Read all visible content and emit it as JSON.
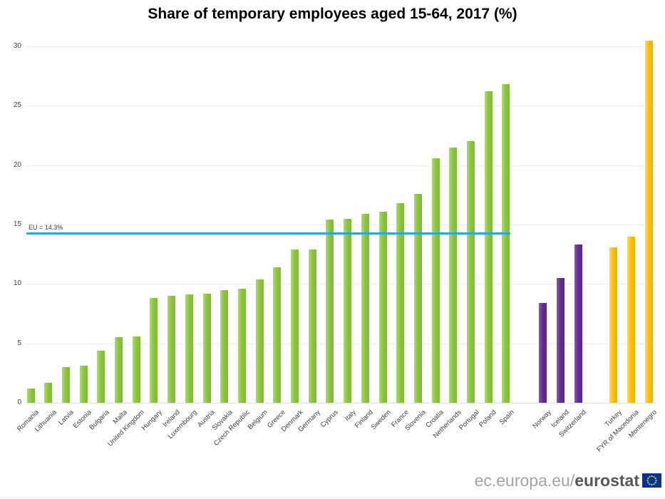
{
  "title": "Share of temporary employees aged 15-64, 2017 (%)",
  "footer": {
    "url_prefix": "ec.europa.eu/",
    "url_bold": "eurostat",
    "flag_colors": {
      "field": "#003399",
      "stars": "#ffcc00"
    }
  },
  "chart_data": {
    "type": "bar",
    "title": "Share of temporary employees aged 15-64, 2017 (%)",
    "xlabel": "",
    "ylabel": "",
    "ylim": [
      0,
      31
    ],
    "yticks": [
      0,
      5,
      10,
      15,
      20,
      25,
      30
    ],
    "grid": true,
    "legend": false,
    "reference_line": {
      "label": "EU = 14.3%",
      "value": 14.3,
      "color": "#29a8e0"
    },
    "groups": [
      {
        "key": "green",
        "color": "#8cc63f",
        "light": "#aeda75",
        "dark": "#7eb937"
      },
      {
        "key": "purple",
        "color": "#662d91",
        "light": "#8a5bb0",
        "dark": "#5a2683"
      },
      {
        "key": "yellow",
        "color": "#fdc107",
        "light": "#fed95e",
        "dark": "#eeb100"
      }
    ],
    "bars": [
      {
        "country": "Romania",
        "value": 1.2,
        "group": 0
      },
      {
        "country": "Lithuania",
        "value": 1.7,
        "group": 0
      },
      {
        "country": "Latvia",
        "value": 3.0,
        "group": 0
      },
      {
        "country": "Estonia",
        "value": 3.1,
        "group": 0
      },
      {
        "country": "Bulgaria",
        "value": 4.4,
        "group": 0
      },
      {
        "country": "Malta",
        "value": 5.5,
        "group": 0
      },
      {
        "country": "United Kingdom",
        "value": 5.6,
        "group": 0
      },
      {
        "country": "Hungary",
        "value": 8.8,
        "group": 0
      },
      {
        "country": "Ireland",
        "value": 9.0,
        "group": 0
      },
      {
        "country": "Luxembourg",
        "value": 9.1,
        "group": 0
      },
      {
        "country": "Austria",
        "value": 9.2,
        "group": 0
      },
      {
        "country": "Slovakia",
        "value": 9.5,
        "group": 0
      },
      {
        "country": "Czech Republic",
        "value": 9.6,
        "group": 0
      },
      {
        "country": "Belgium",
        "value": 10.4,
        "group": 0
      },
      {
        "country": "Greece",
        "value": 11.4,
        "group": 0
      },
      {
        "country": "Denmark",
        "value": 12.9,
        "group": 0
      },
      {
        "country": "Germany",
        "value": 12.9,
        "group": 0
      },
      {
        "country": "Cyprus",
        "value": 15.4,
        "group": 0
      },
      {
        "country": "Italy",
        "value": 15.5,
        "group": 0
      },
      {
        "country": "Finland",
        "value": 15.9,
        "group": 0
      },
      {
        "country": "Sweden",
        "value": 16.1,
        "group": 0
      },
      {
        "country": "France",
        "value": 16.8,
        "group": 0
      },
      {
        "country": "Slovenia",
        "value": 17.6,
        "group": 0
      },
      {
        "country": "Croatia",
        "value": 20.6,
        "group": 0
      },
      {
        "country": "Netherlands",
        "value": 21.5,
        "group": 0
      },
      {
        "country": "Portugal",
        "value": 22.0,
        "group": 0
      },
      {
        "country": "Poland",
        "value": 26.2,
        "group": 0
      },
      {
        "country": "Spain",
        "value": 26.8,
        "group": 0
      },
      {
        "country": "Norway",
        "value": 8.4,
        "group": 1
      },
      {
        "country": "Iceland",
        "value": 10.5,
        "group": 1
      },
      {
        "country": "Switzerland",
        "value": 13.3,
        "group": 1
      },
      {
        "country": "Turkey",
        "value": 13.1,
        "group": 2
      },
      {
        "country": "FYR of Macedonia",
        "value": 14.0,
        "group": 2
      },
      {
        "country": "Montenegro",
        "value": 30.5,
        "group": 2
      }
    ]
  }
}
